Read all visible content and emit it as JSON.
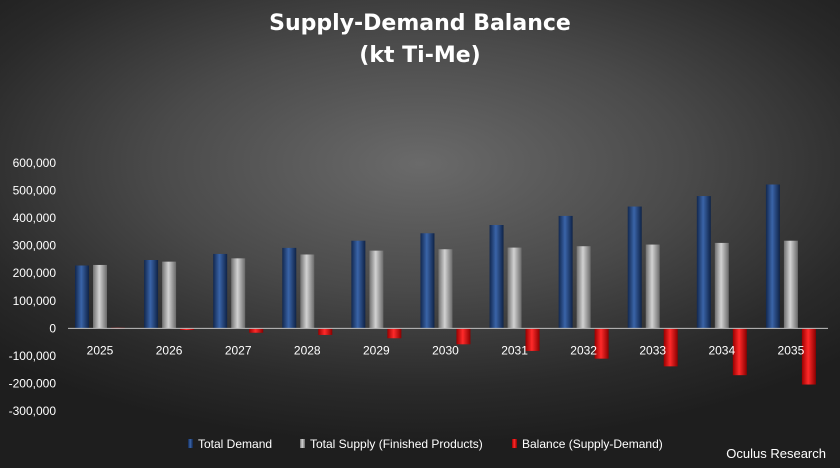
{
  "chart_data": {
    "type": "bar",
    "title": "Supply-Demand Balance",
    "subtitle": "(kt Ti-Me)",
    "categories": [
      "2025",
      "2026",
      "2027",
      "2028",
      "2029",
      "2030",
      "2031",
      "2032",
      "2033",
      "2034",
      "2035"
    ],
    "series": [
      {
        "name": "Total Demand",
        "color": "#1f3f77",
        "values": [
          228000,
          248000,
          270000,
          292000,
          318000,
          345000,
          375000,
          408000,
          442000,
          480000,
          522000
        ]
      },
      {
        "name": "Total Supply (Finished Products)",
        "color": "#a6a6a6",
        "values": [
          230000,
          242000,
          254000,
          268000,
          282000,
          287000,
          293000,
          298000,
          304000,
          310000,
          318000
        ]
      },
      {
        "name": "Balance (Supply-Demand)",
        "color": "#e00000",
        "values": [
          2000,
          -6000,
          -16000,
          -24000,
          -36000,
          -58000,
          -82000,
          -110000,
          -138000,
          -170000,
          -204000
        ]
      }
    ],
    "ylim": [
      -300000,
      600000
    ],
    "yticks": [
      600000,
      500000,
      400000,
      300000,
      200000,
      100000,
      0,
      -100000,
      -200000,
      -300000
    ],
    "ytick_labels": [
      "600,000",
      "500,000",
      "400,000",
      "300,000",
      "200,000",
      "100,000",
      "0",
      "-100,000",
      "-200,000",
      "-300,000"
    ],
    "xlabel": "",
    "ylabel": "",
    "grid": false,
    "legend_position": "bottom"
  },
  "source": "Oculus Research"
}
